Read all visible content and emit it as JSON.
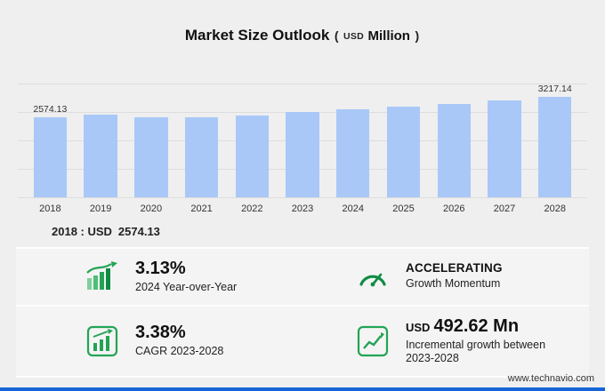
{
  "title": {
    "main": "Market Size Outlook",
    "open_paren": "(",
    "currency": "USD",
    "unit": "Million",
    "close_paren": ")"
  },
  "chart_data": {
    "type": "bar",
    "title": "Market Size Outlook (USD Million)",
    "categories": [
      "2018",
      "2019",
      "2020",
      "2021",
      "2022",
      "2023",
      "2024",
      "2025",
      "2026",
      "2027",
      "2028"
    ],
    "values": [
      2574.13,
      2640,
      2563,
      2578,
      2622,
      2724.52,
      2809.79,
      2905,
      3005,
      3110,
      3217.14
    ],
    "data_labels": {
      "first": "2574.13",
      "last": "3217.14"
    },
    "ylim": [
      0,
      3650
    ],
    "grid": true,
    "gridline_count": 5,
    "legend": "none",
    "bar_color": "#a9c8f8"
  },
  "annotation_2018": {
    "label": "2018 : USD",
    "value": "2574.13"
  },
  "stats": [
    {
      "id": "yoy",
      "icon": "bar-growth-icon",
      "value": "3.13%",
      "caption": "2024 Year-over-Year"
    },
    {
      "id": "momentum",
      "icon": "gauge-icon",
      "value": "ACCELERATING",
      "caption": "Growth Momentum"
    },
    {
      "id": "cagr",
      "icon": "chart-box-icon",
      "value": "3.38%",
      "caption": "CAGR 2023-2028"
    },
    {
      "id": "incremental",
      "icon": "line-chart-box-icon",
      "value_prefix": "USD",
      "value": "492.62 Mn",
      "caption": "Incremental growth between 2023-2028"
    }
  ],
  "footer": {
    "website": "www.technavio.com"
  },
  "colors": {
    "bar": "#a9c8f8",
    "green": "#23a455",
    "green_dark": "#0e8c44",
    "blue_bar": "#1565d8",
    "background": "#efefef"
  }
}
